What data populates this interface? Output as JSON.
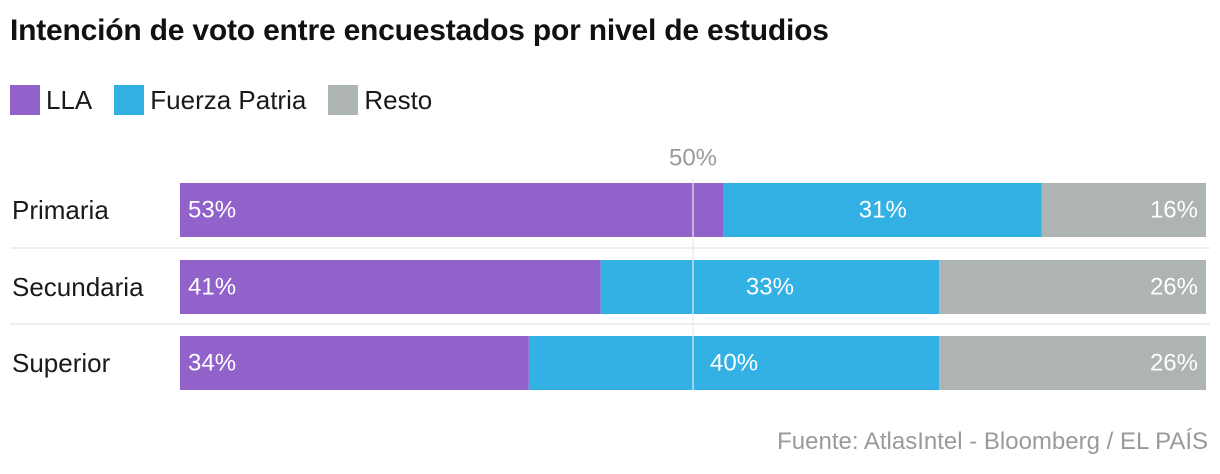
{
  "title": "Intención de voto entre encuestados por nivel de estudios",
  "source": "Fuente: AtlasIntel - Bloomberg / EL PAÍS",
  "colors": {
    "lla": "#9062CA",
    "fuerza_patria": "#33B0E4",
    "resto": "#AEB3B3",
    "reference_line": "#E9E9F0",
    "separator": "#DDDDDD",
    "reference_label": "#9a9a9a"
  },
  "legend": [
    {
      "label": "LLA",
      "color": "#9062CA"
    },
    {
      "label": "Fuerza Patria",
      "color": "#33B0E4"
    },
    {
      "label": "Resto",
      "color": "#AEB3B3"
    }
  ],
  "chart_data": {
    "type": "bar",
    "orientation": "horizontal",
    "stacked": true,
    "title": "Intención de voto entre encuestados por nivel de estudios",
    "categories": [
      "Primaria",
      "Secundaria",
      "Superior"
    ],
    "series": [
      {
        "name": "LLA",
        "values": [
          53,
          41,
          34
        ],
        "labels": [
          "53%",
          "41%",
          "34%"
        ]
      },
      {
        "name": "Fuerza Patria",
        "values": [
          31,
          33,
          40
        ],
        "labels": [
          "31%",
          "33%",
          "40%"
        ]
      },
      {
        "name": "Resto",
        "values": [
          16,
          26,
          26
        ],
        "labels": [
          "16%",
          "26%",
          "26%"
        ]
      }
    ],
    "xlim": [
      0,
      100
    ],
    "reference_line": {
      "value": 50,
      "label": "50%"
    },
    "xlabel": "",
    "ylabel": "",
    "legend_position": "top-left"
  }
}
